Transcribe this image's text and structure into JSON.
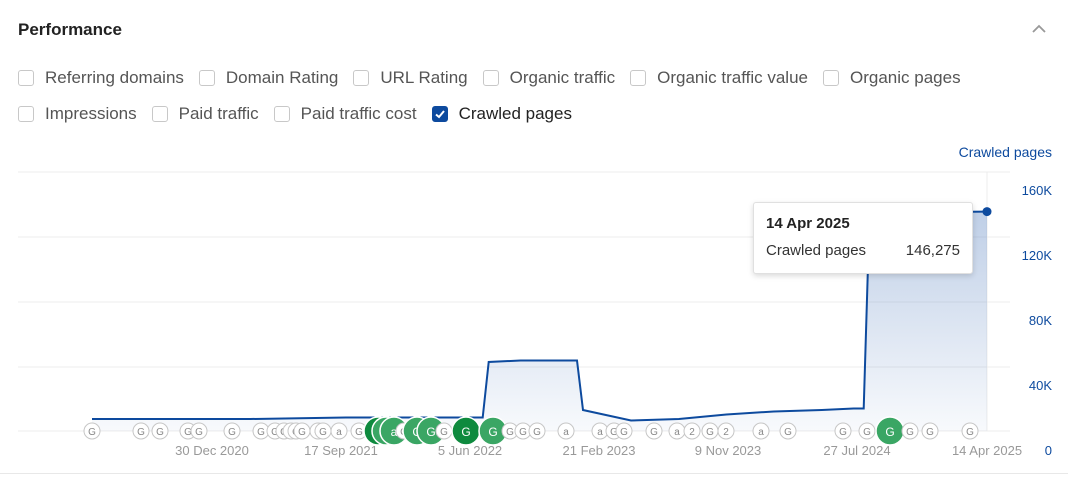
{
  "header": {
    "title": "Performance"
  },
  "filters": [
    [
      {
        "label": "Referring domains",
        "checked": false
      },
      {
        "label": "Domain Rating",
        "checked": false
      },
      {
        "label": "URL Rating",
        "checked": false
      },
      {
        "label": "Organic traffic",
        "checked": false
      },
      {
        "label": "Organic traffic value",
        "checked": false
      },
      {
        "label": "Organic pages",
        "checked": false
      }
    ],
    [
      {
        "label": "Impressions",
        "checked": false
      },
      {
        "label": "Paid traffic",
        "checked": false
      },
      {
        "label": "Paid traffic cost",
        "checked": false
      },
      {
        "label": "Crawled pages",
        "checked": true
      }
    ]
  ],
  "tooltip": {
    "date": "14 Apr 2025",
    "label": "Crawled pages",
    "value": "146,275"
  },
  "legend": {
    "series": "Crawled pages"
  },
  "accent_color": "#0d4a9e",
  "chart_data": {
    "type": "area",
    "series": [
      {
        "name": "Crawled pages",
        "color": "#0d4a9e"
      }
    ],
    "x_tick_labels": [
      "30 Dec 2020",
      "17 Sep 2021",
      "5 Jun 2022",
      "21 Feb 2023",
      "9 Nov 2023",
      "27 Jul 2024",
      "14 Apr 2025"
    ],
    "y_tick_labels": [
      "160K",
      "120K",
      "80K",
      "40K",
      "0"
    ],
    "ylim": [
      0,
      160000
    ],
    "x": [
      "2020-08",
      "2021-06",
      "2021-12",
      "2022-03",
      "2022-06",
      "2022-08",
      "2022-09",
      "2022-11",
      "2022-12",
      "2023-01",
      "2023-03",
      "2023-06",
      "2023-09",
      "2023-12",
      "2024-03",
      "2024-06",
      "2024-08",
      "2024-09",
      "2024-10",
      "2025-01",
      "2025-04-14"
    ],
    "values": [
      8000,
      8000,
      9000,
      9000,
      9000,
      9000,
      46000,
      47000,
      47000,
      47000,
      14000,
      7000,
      8000,
      11000,
      13000,
      14000,
      15000,
      148000,
      147000,
      146000,
      146275
    ],
    "grid": true,
    "annotations": {
      "markers": [
        "G",
        "G",
        "G",
        "G",
        "G",
        "G",
        "G",
        "G",
        "G",
        "a",
        "G",
        "G",
        "G",
        "G",
        "a",
        "G",
        "a",
        "G",
        "a",
        "G",
        "G",
        "G",
        "G",
        "G",
        "G",
        "G",
        "G",
        "G",
        "a",
        "a",
        "G",
        "G",
        "G",
        "a",
        "2",
        "G",
        "2",
        "a",
        "G",
        "G",
        "G"
      ]
    }
  }
}
